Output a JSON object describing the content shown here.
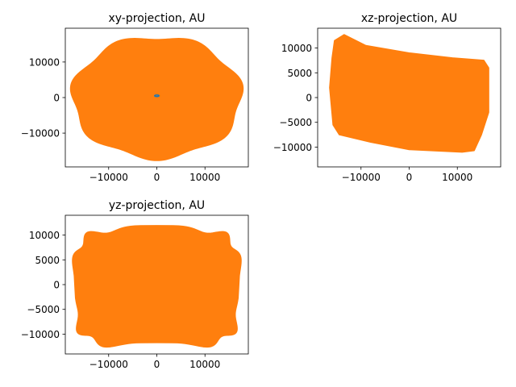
{
  "figure": {
    "background": "#ffffff",
    "colors": {
      "orbit_fill": "#ff7f0e",
      "inner_orbit": "#1f77b4",
      "axes_edge": "#000000"
    }
  },
  "chart_data": [
    {
      "type": "line",
      "title": "xy-projection, AU",
      "xlabel": "",
      "ylabel": "",
      "xlim": [
        -19000,
        19000
      ],
      "ylim": [
        -19500,
        19500
      ],
      "xticks": [
        -10000,
        0,
        10000
      ],
      "xtick_labels": [
        "−10000",
        "0",
        "10000"
      ],
      "yticks": [
        -10000,
        0,
        10000
      ],
      "ytick_labels": [
        "−10000",
        "0",
        "10000"
      ],
      "grid": false,
      "legend": "none",
      "series": [
        {
          "color": "#ff7f0e",
          "shape": "filled-ellipse",
          "center": [
            0,
            0
          ],
          "radius_x": 17500,
          "radius_y": 17000,
          "wobble": 700
        },
        {
          "color": "#1f77b4",
          "shape": "small-orbit",
          "center": [
            0,
            500
          ],
          "radius_x": 450,
          "radius_y": 220
        }
      ]
    },
    {
      "type": "line",
      "title": "xz-projection, AU",
      "xlabel": "",
      "ylabel": "",
      "xlim": [
        -19000,
        19000
      ],
      "ylim": [
        -14000,
        14000
      ],
      "xticks": [
        -10000,
        0,
        10000
      ],
      "xtick_labels": [
        "−10000",
        "0",
        "10000"
      ],
      "yticks": [
        -10000,
        -5000,
        0,
        5000,
        10000
      ],
      "ytick_labels": [
        "−10000",
        "−5000",
        "0",
        "5000",
        "10000"
      ],
      "grid": false,
      "legend": "none",
      "series": [
        {
          "color": "#ff7f0e",
          "shape": "filled-polygon",
          "outline": [
            [
              -15500,
              11500
            ],
            [
              -13500,
              12700
            ],
            [
              -9000,
              10500
            ],
            [
              0,
              9000
            ],
            [
              9000,
              8000
            ],
            [
              15500,
              7500
            ],
            [
              16500,
              6000
            ],
            [
              16500,
              -3000
            ],
            [
              15000,
              -7500
            ],
            [
              13500,
              -10700
            ],
            [
              11000,
              -11000
            ],
            [
              0,
              -10500
            ],
            [
              -8000,
              -9000
            ],
            [
              -14500,
              -7500
            ],
            [
              -15800,
              -5500
            ],
            [
              -16500,
              2000
            ],
            [
              -16000,
              8000
            ]
          ]
        }
      ]
    },
    {
      "type": "line",
      "title": "yz-projection, AU",
      "xlabel": "",
      "ylabel": "",
      "xlim": [
        -19000,
        19000
      ],
      "ylim": [
        -14000,
        14000
      ],
      "xticks": [
        -10000,
        0,
        10000
      ],
      "xtick_labels": [
        "−10000",
        "0",
        "10000"
      ],
      "yticks": [
        -10000,
        -5000,
        0,
        5000,
        10000
      ],
      "ytick_labels": [
        "−10000",
        "−5000",
        "0",
        "5000",
        "10000"
      ],
      "grid": false,
      "legend": "none",
      "series": [
        {
          "color": "#ff7f0e",
          "shape": "filled-rounded-rect",
          "center": [
            0,
            -500
          ],
          "half_width": 17000,
          "half_height": 11800,
          "corner": 4000,
          "wobble": 600
        }
      ]
    }
  ]
}
